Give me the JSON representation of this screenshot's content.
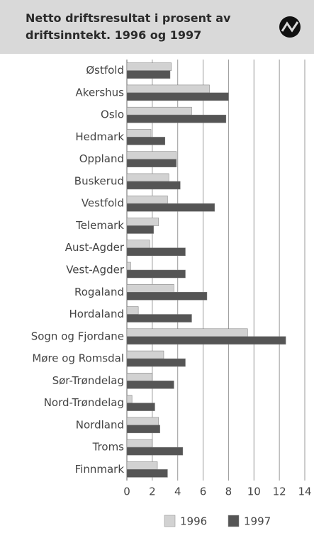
{
  "chart_data": {
    "type": "barh",
    "title": "Netto driftsresultat i prosent av driftsinntekt. 1996 og 1997",
    "categories": [
      "Østfold",
      "Akershus",
      "Oslo",
      "Hedmark",
      "Oppland",
      "Buskerud",
      "Vestfold",
      "Telemark",
      "Aust-Agder",
      "Vest-Agder",
      "Rogaland",
      "Hordaland",
      "Sogn og Fjordane",
      "Møre og Romsdal",
      "Sør-Trøndelag",
      "Nord-Trøndelag",
      "Nordland",
      "Troms",
      "Finnmark"
    ],
    "series": [
      {
        "name": "1996",
        "color": "#d2d2d2",
        "values": [
          3.5,
          6.5,
          5.1,
          1.9,
          3.9,
          3.3,
          3.2,
          2.5,
          1.8,
          0.3,
          3.7,
          0.9,
          9.5,
          2.9,
          2.0,
          0.4,
          2.5,
          2.0,
          2.4
        ]
      },
      {
        "name": "1997",
        "color": "#555555",
        "values": [
          3.4,
          8.0,
          7.8,
          3.0,
          3.9,
          4.2,
          6.9,
          2.1,
          4.6,
          4.6,
          6.3,
          5.1,
          12.5,
          4.6,
          3.7,
          2.2,
          2.6,
          4.4,
          3.2
        ]
      }
    ],
    "xlim": [
      0,
      14
    ],
    "xticks": [
      0,
      2,
      4,
      6,
      8,
      10,
      12,
      14
    ],
    "grid": true,
    "legend": "bottom"
  }
}
